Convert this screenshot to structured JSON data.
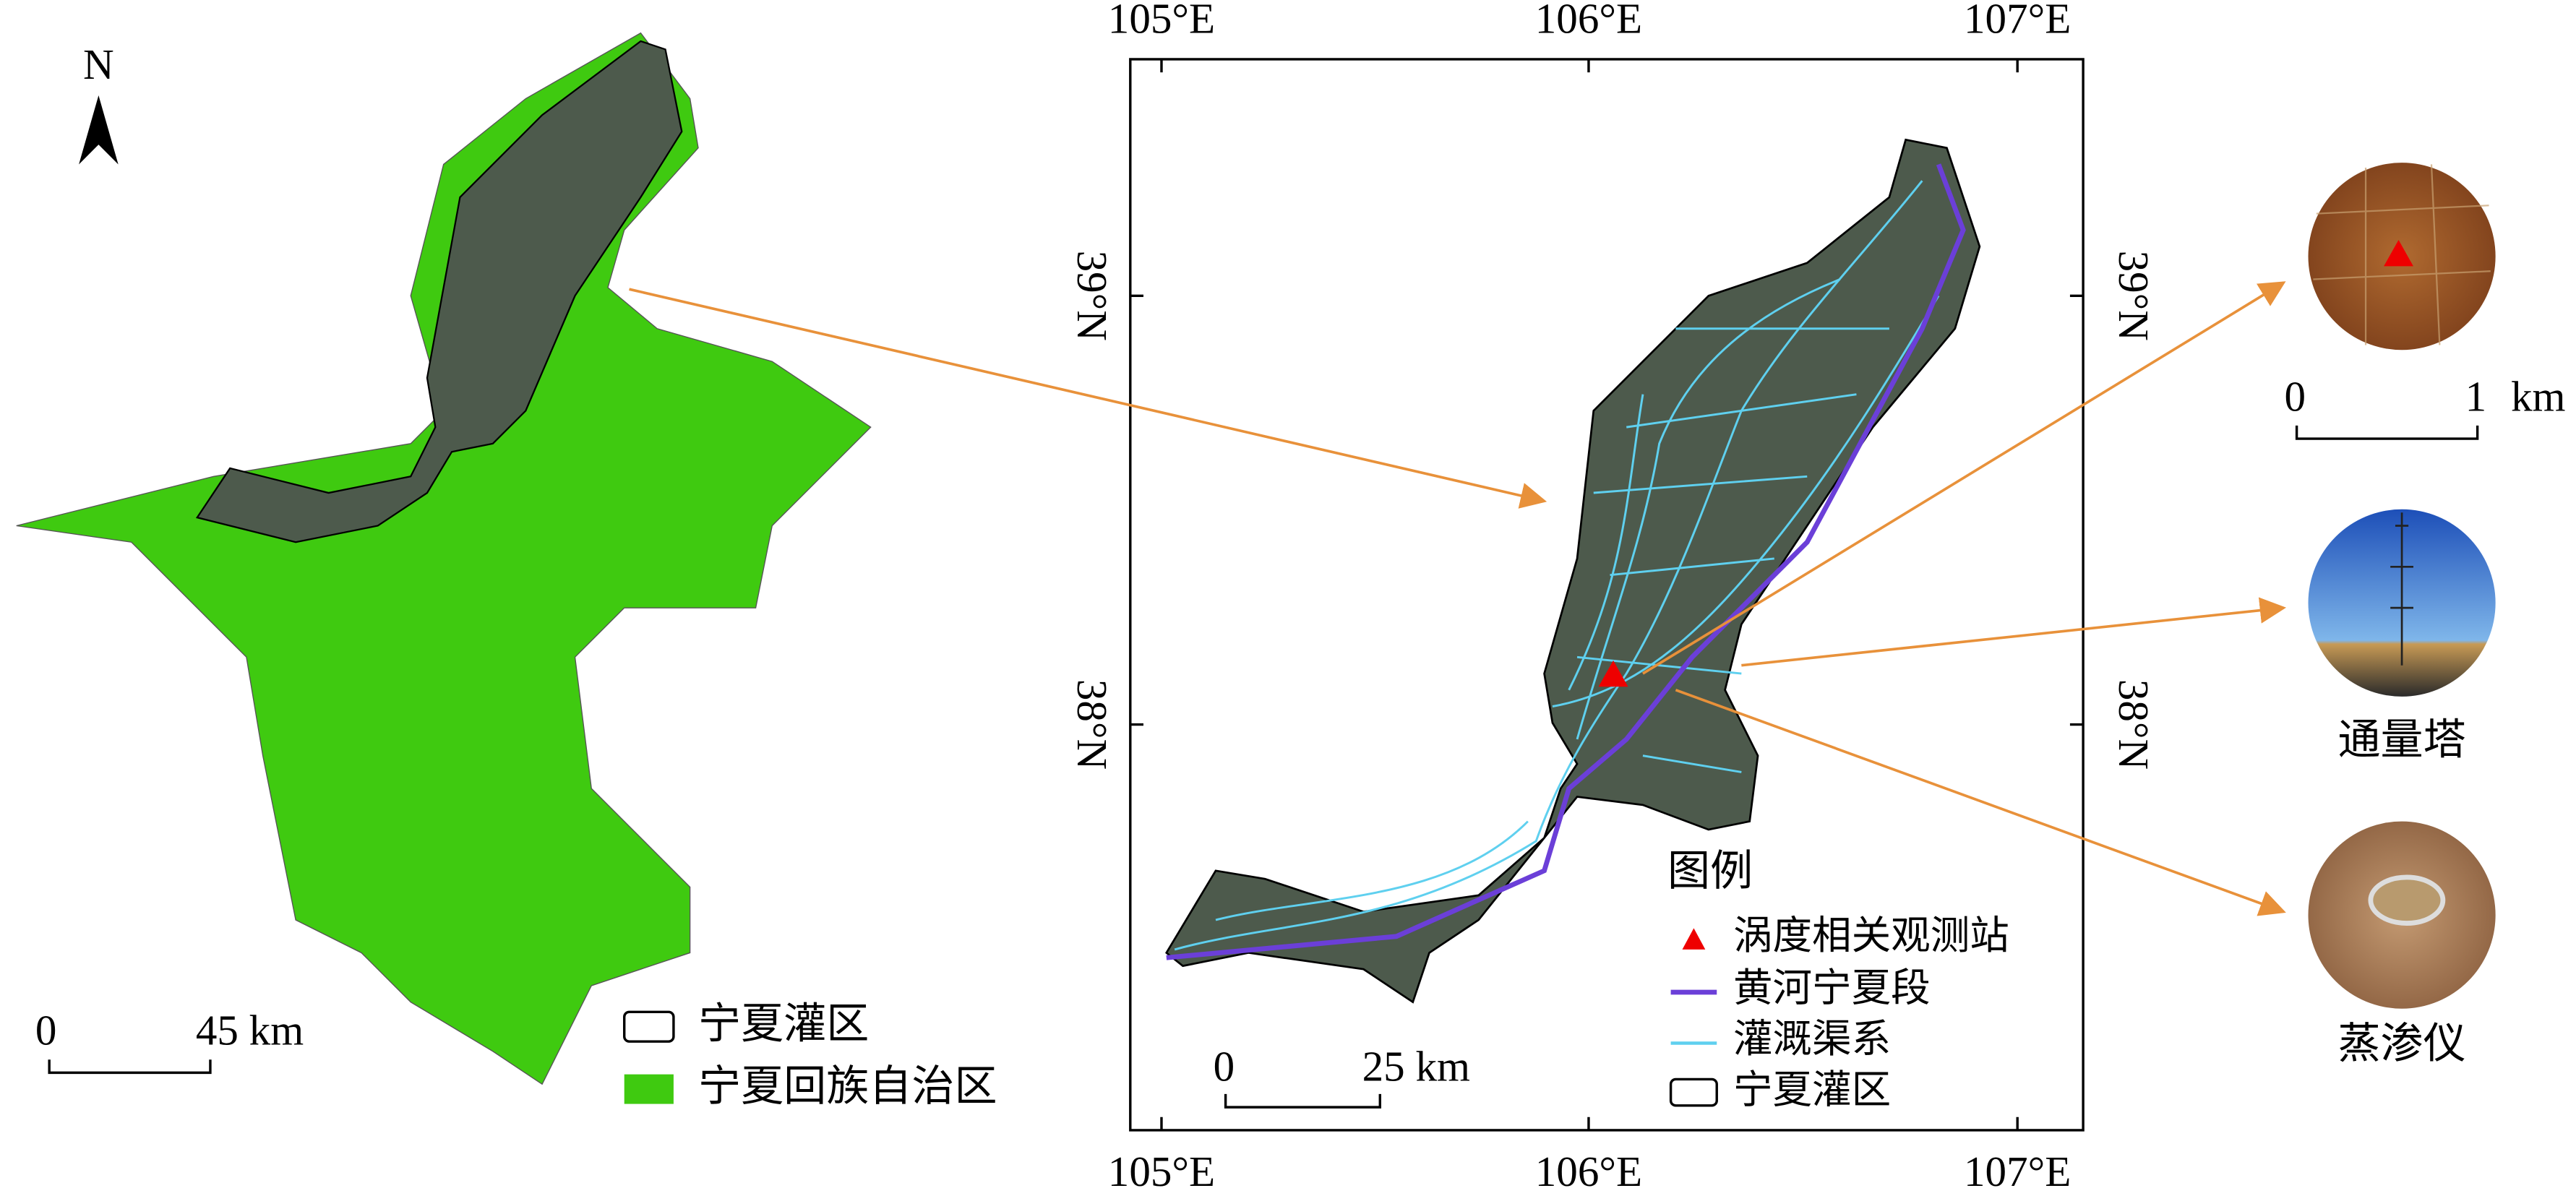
{
  "overview": {
    "north": "N",
    "scale": {
      "start": "0",
      "end": "45 km"
    },
    "legend": [
      "宁夏灌区",
      "宁夏回族自治区"
    ]
  },
  "main_map": {
    "top_labels": [
      "105°E",
      "106°E",
      "107°E"
    ],
    "bottom_labels": [
      "105°E",
      "106°E",
      "107°E"
    ],
    "left_labels": [
      "39°N",
      "38°N"
    ],
    "right_labels": [
      "39°N",
      "38°N"
    ],
    "scale": {
      "start": "0",
      "end": "25 km"
    },
    "legend": {
      "title": "图例",
      "items": [
        "涡度相关观测站",
        "黄河宁夏段",
        "灌溉渠系",
        "宁夏灌区"
      ]
    }
  },
  "insets": {
    "scale": {
      "start": "0",
      "end": "1",
      "unit": "km"
    },
    "labels": [
      "通量塔",
      "蒸渗仪"
    ]
  }
}
